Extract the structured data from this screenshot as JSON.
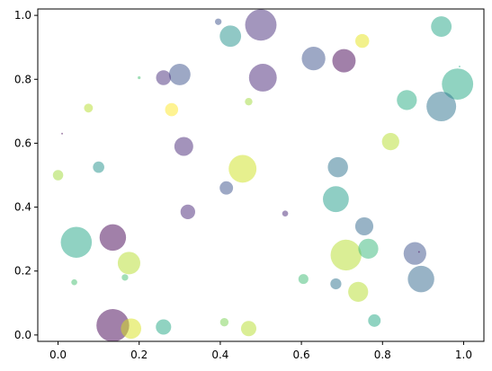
{
  "chart_data": {
    "type": "scatter",
    "title": "",
    "xlabel": "",
    "ylabel": "",
    "xlim": [
      -0.05,
      1.05
    ],
    "ylim": [
      -0.02,
      1.02
    ],
    "grid": false,
    "colormap": "viridis",
    "alpha": 0.5,
    "xticks": [
      "0.0",
      "0.2",
      "0.4",
      "0.6",
      "0.8",
      "1.0"
    ],
    "yticks": [
      "0.0",
      "0.2",
      "0.4",
      "0.6",
      "0.8",
      "1.0"
    ],
    "points": [
      {
        "x": 0.135,
        "y": 0.03,
        "size": 1500,
        "color": "#440154"
      },
      {
        "x": 0.5,
        "y": 0.97,
        "size": 1380,
        "color": "#472d7b"
      },
      {
        "x": 0.045,
        "y": 0.29,
        "size": 1350,
        "color": "#21a685"
      },
      {
        "x": 0.71,
        "y": 0.25,
        "size": 1330,
        "color": "#b5de2b"
      },
      {
        "x": 0.985,
        "y": 0.785,
        "size": 1370,
        "color": "#22a884"
      },
      {
        "x": 0.945,
        "y": 0.715,
        "size": 1230,
        "color": "#2c728e"
      },
      {
        "x": 0.455,
        "y": 0.52,
        "size": 1080,
        "color": "#cde11d"
      },
      {
        "x": 0.505,
        "y": 0.805,
        "size": 1080,
        "color": "#482677"
      },
      {
        "x": 0.895,
        "y": 0.175,
        "size": 980,
        "color": "#31688e"
      },
      {
        "x": 0.135,
        "y": 0.305,
        "size": 980,
        "color": "#440154"
      },
      {
        "x": 0.685,
        "y": 0.425,
        "size": 940,
        "color": "#1f9e89"
      },
      {
        "x": 0.63,
        "y": 0.865,
        "size": 780,
        "color": "#3b528b"
      },
      {
        "x": 0.705,
        "y": 0.858,
        "size": 760,
        "color": "#440154"
      },
      {
        "x": 0.88,
        "y": 0.255,
        "size": 720,
        "color": "#3b528b"
      },
      {
        "x": 0.175,
        "y": 0.225,
        "size": 710,
        "color": "#b5de2b"
      },
      {
        "x": 0.3,
        "y": 0.815,
        "size": 650,
        "color": "#3b528b"
      },
      {
        "x": 0.425,
        "y": 0.935,
        "size": 640,
        "color": "#21918c"
      },
      {
        "x": 0.945,
        "y": 0.965,
        "size": 590,
        "color": "#21a685"
      },
      {
        "x": 0.18,
        "y": 0.02,
        "size": 580,
        "color": "#d8e219"
      },
      {
        "x": 0.86,
        "y": 0.735,
        "size": 560,
        "color": "#25ab82"
      },
      {
        "x": 0.74,
        "y": 0.135,
        "size": 560,
        "color": "#b5de2b"
      },
      {
        "x": 0.69,
        "y": 0.525,
        "size": 570,
        "color": "#2c728e"
      },
      {
        "x": 0.765,
        "y": 0.27,
        "size": 560,
        "color": "#35b779"
      },
      {
        "x": 0.31,
        "y": 0.59,
        "size": 500,
        "color": "#482878"
      },
      {
        "x": 0.755,
        "y": 0.34,
        "size": 460,
        "color": "#31688e"
      },
      {
        "x": 0.82,
        "y": 0.605,
        "size": 420,
        "color": "#b5de2b"
      },
      {
        "x": 0.26,
        "y": 0.025,
        "size": 330,
        "color": "#22a884"
      },
      {
        "x": 0.47,
        "y": 0.02,
        "size": 330,
        "color": "#b5de2b"
      },
      {
        "x": 0.32,
        "y": 0.385,
        "size": 300,
        "color": "#482677"
      },
      {
        "x": 0.26,
        "y": 0.805,
        "size": 310,
        "color": "#472d7b"
      },
      {
        "x": 0.75,
        "y": 0.92,
        "size": 270,
        "color": "#e5e419"
      },
      {
        "x": 0.415,
        "y": 0.46,
        "size": 250,
        "color": "#3b528b"
      },
      {
        "x": 0.28,
        "y": 0.705,
        "size": 240,
        "color": "#fde725"
      },
      {
        "x": 0.78,
        "y": 0.045,
        "size": 220,
        "color": "#22a884"
      },
      {
        "x": 0.1,
        "y": 0.525,
        "size": 180,
        "color": "#21918c"
      },
      {
        "x": 0.685,
        "y": 0.16,
        "size": 170,
        "color": "#2c728e"
      },
      {
        "x": 0.0,
        "y": 0.5,
        "size": 150,
        "color": "#a0da39"
      },
      {
        "x": 0.605,
        "y": 0.175,
        "size": 140,
        "color": "#3dbc74"
      },
      {
        "x": 0.075,
        "y": 0.71,
        "size": 110,
        "color": "#b5de2b"
      },
      {
        "x": 0.41,
        "y": 0.04,
        "size": 100,
        "color": "#7ad151"
      },
      {
        "x": 0.47,
        "y": 0.73,
        "size": 80,
        "color": "#a0da39"
      },
      {
        "x": 0.165,
        "y": 0.18,
        "size": 60,
        "color": "#44bf70"
      },
      {
        "x": 0.395,
        "y": 0.98,
        "size": 60,
        "color": "#3b528b"
      },
      {
        "x": 0.04,
        "y": 0.165,
        "size": 50,
        "color": "#44bf70"
      },
      {
        "x": 0.56,
        "y": 0.38,
        "size": 50,
        "color": "#482878"
      },
      {
        "x": 0.2,
        "y": 0.805,
        "size": 12,
        "color": "#44bf70"
      },
      {
        "x": 0.01,
        "y": 0.63,
        "size": 4,
        "color": "#440154"
      },
      {
        "x": 0.99,
        "y": 0.84,
        "size": 4,
        "color": "#22a884"
      },
      {
        "x": 0.89,
        "y": 0.26,
        "size": 4,
        "color": "#440154"
      }
    ]
  }
}
